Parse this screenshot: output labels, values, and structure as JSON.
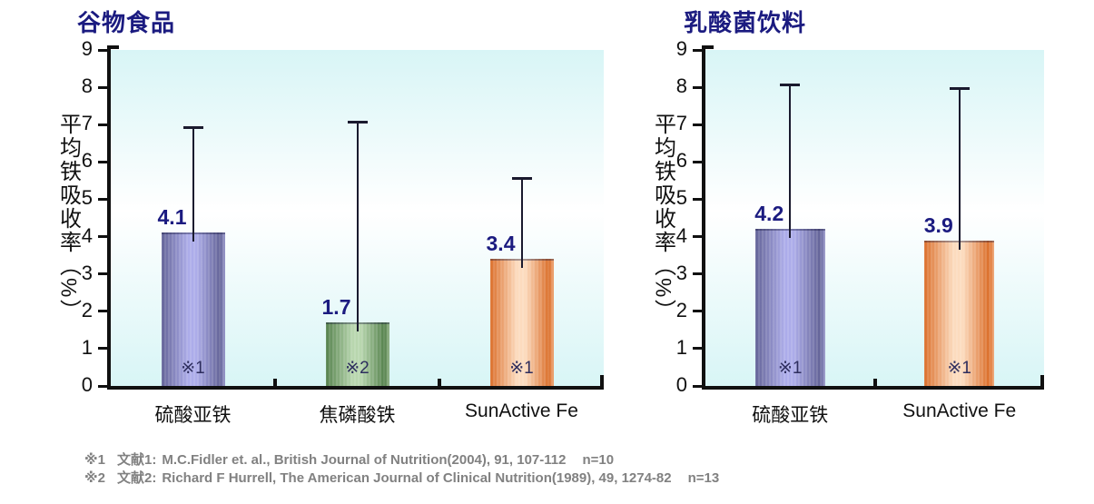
{
  "page": {
    "background": "#ffffff"
  },
  "chart_data": [
    {
      "type": "bar",
      "title": "谷物食品",
      "ylabel": "平均铁吸收率（%）",
      "xlabel": "",
      "ylim": [
        0,
        9
      ],
      "yticks": [
        0,
        1,
        2,
        3,
        4,
        5,
        6,
        7,
        8,
        9
      ],
      "grid": false,
      "legend": "none",
      "plot_bg_gradient": [
        "#d8f5f6",
        "#ffffff",
        "#d8f5f6"
      ],
      "categories": [
        "硫酸亚铁",
        "焦磷酸铁",
        "SunActive Fe"
      ],
      "series": [
        {
          "name": "平均铁吸收率(%)",
          "values": [
            4.1,
            1.7,
            3.4
          ]
        }
      ],
      "value_labels": [
        "4.1",
        "1.7",
        "3.4"
      ],
      "error_top": [
        6.95,
        7.1,
        5.6
      ],
      "bar_refs": [
        "※1",
        "※2",
        "※1"
      ],
      "bar_colors": [
        "purple",
        "green",
        "orange"
      ]
    },
    {
      "type": "bar",
      "title": "乳酸菌饮料",
      "ylabel": "平均铁吸收率（%）",
      "xlabel": "",
      "ylim": [
        0,
        9
      ],
      "yticks": [
        0,
        1,
        2,
        3,
        4,
        5,
        6,
        7,
        8,
        9
      ],
      "grid": false,
      "legend": "none",
      "plot_bg_gradient": [
        "#d8f5f6",
        "#ffffff",
        "#d8f5f6"
      ],
      "categories": [
        "硫酸亚铁",
        "SunActive Fe"
      ],
      "series": [
        {
          "name": "平均铁吸收率(%)",
          "values": [
            4.2,
            3.9
          ]
        }
      ],
      "value_labels": [
        "4.2",
        "3.9"
      ],
      "error_top": [
        8.1,
        8.0
      ],
      "bar_refs": [
        "※1",
        "※1"
      ],
      "bar_colors": [
        "purple",
        "orange"
      ]
    }
  ],
  "palette": {
    "title_color": "#1b1b80",
    "value_label_color": "#1b1b80",
    "axis_color": "#101010",
    "error_bar_color": "#1a1a2e",
    "ref_label_color": "#2e2e5e",
    "footnote_color": "#818181",
    "bars": {
      "purple": {
        "dark": "#5b5b92",
        "light": "#a8a8e8",
        "soft": "#8d8dc4"
      },
      "green": {
        "dark": "#4b7a42",
        "light": "#b4d4aa",
        "soft": "#86ab7a"
      },
      "orange": {
        "dark": "#d9671f",
        "light": "#fcd9ba",
        "soft": "#eb9a64"
      }
    }
  },
  "footnotes": [
    {
      "mark": "※1",
      "source": "文献1:",
      "citation": "M.C.Fidler et. al., British Journal of Nutrition(2004), 91, 107-112",
      "n": "n=10"
    },
    {
      "mark": "※2",
      "source": "文献2:",
      "citation": "Richard F Hurrell,  The American Journal of Clinical Nutrition(1989), 49, 1274-82",
      "n": "n=13"
    }
  ]
}
